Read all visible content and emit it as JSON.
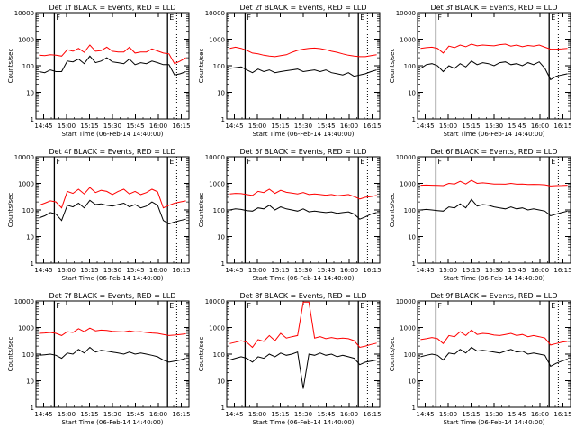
{
  "colors": {
    "events": "#000000",
    "lld": "#ff0000",
    "axis": "#000000",
    "background": "#ffffff"
  },
  "shared": {
    "xlabel": "Start Time (06-Feb-14 14:40:00)",
    "ylabel": "Counts/sec",
    "x_tick_labels": [
      "14:45",
      "15:00",
      "15:15",
      "15:30",
      "15:45",
      "16:00",
      "16:15"
    ],
    "y_tick_labels": [
      "1",
      "10",
      "100",
      "1000",
      "10000"
    ],
    "y_scale": "log",
    "ylim": [
      1,
      10000
    ],
    "solid_marker_times": [
      "14:52",
      "16:06"
    ],
    "dotted_marker_times": [
      "16:12"
    ],
    "marker_flags": [
      "F",
      "E"
    ]
  },
  "chart_data": [
    {
      "type": "line",
      "title": "Det 1f BLACK = Events, RED = LLD",
      "detector": "1f",
      "events": [
        60,
        55,
        70,
        60,
        60,
        150,
        140,
        180,
        120,
        230,
        130,
        150,
        200,
        140,
        130,
        120,
        180,
        110,
        130,
        120,
        150,
        130,
        110,
        110,
        45,
        50,
        60
      ],
      "lld": [
        250,
        240,
        260,
        250,
        230,
        400,
        350,
        450,
        320,
        600,
        350,
        370,
        500,
        350,
        330,
        330,
        500,
        300,
        330,
        330,
        430,
        360,
        300,
        280,
        120,
        150,
        200
      ]
    },
    {
      "type": "line",
      "title": "Det 2f BLACK = Events, RED = LLD",
      "detector": "2f",
      "events": [
        80,
        85,
        90,
        70,
        55,
        75,
        60,
        70,
        55,
        60,
        65,
        70,
        75,
        60,
        65,
        70,
        60,
        70,
        55,
        50,
        45,
        55,
        40,
        45,
        50,
        60,
        70
      ],
      "lld": [
        450,
        500,
        450,
        380,
        300,
        280,
        250,
        230,
        220,
        240,
        260,
        320,
        380,
        420,
        450,
        460,
        440,
        400,
        350,
        320,
        280,
        250,
        230,
        220,
        220,
        240,
        260
      ]
    },
    {
      "type": "line",
      "title": "Det 3f BLACK = Events, RED = LLD",
      "detector": "3f",
      "events": [
        80,
        110,
        120,
        100,
        60,
        100,
        80,
        120,
        90,
        150,
        110,
        130,
        120,
        100,
        130,
        140,
        110,
        120,
        100,
        130,
        110,
        140,
        80,
        30,
        40,
        45,
        50
      ],
      "lld": [
        450,
        480,
        500,
        450,
        300,
        550,
        480,
        600,
        520,
        650,
        560,
        600,
        580,
        560,
        620,
        650,
        550,
        600,
        520,
        580,
        550,
        600,
        500,
        420,
        420,
        430,
        450
      ]
    },
    {
      "type": "line",
      "title": "Det 4f BLACK = Events, RED = LLD",
      "detector": "4f",
      "events": [
        50,
        60,
        80,
        70,
        40,
        150,
        130,
        180,
        120,
        230,
        160,
        170,
        150,
        140,
        160,
        180,
        130,
        160,
        120,
        140,
        200,
        150,
        40,
        30,
        35,
        40,
        45
      ],
      "lld": [
        150,
        180,
        220,
        200,
        120,
        500,
        420,
        600,
        400,
        700,
        450,
        550,
        500,
        380,
        500,
        600,
        400,
        500,
        380,
        450,
        600,
        480,
        120,
        150,
        180,
        200,
        220
      ]
    },
    {
      "type": "line",
      "title": "Det 5f BLACK = Events, RED = LLD",
      "detector": "5f",
      "events": [
        100,
        110,
        105,
        95,
        90,
        120,
        110,
        150,
        100,
        130,
        110,
        100,
        90,
        110,
        85,
        90,
        85,
        80,
        85,
        75,
        80,
        85,
        70,
        45,
        55,
        70,
        80
      ],
      "lld": [
        400,
        420,
        410,
        380,
        350,
        500,
        450,
        600,
        420,
        550,
        460,
        430,
        400,
        450,
        380,
        400,
        380,
        360,
        380,
        340,
        360,
        380,
        320,
        260,
        300,
        320,
        350
      ]
    },
    {
      "type": "line",
      "title": "Det 6f BLACK = Events, RED = LLD",
      "detector": "6f",
      "events": [
        100,
        105,
        100,
        95,
        90,
        130,
        120,
        170,
        120,
        250,
        140,
        160,
        150,
        130,
        120,
        110,
        130,
        110,
        120,
        100,
        110,
        100,
        90,
        60,
        70,
        80,
        90
      ],
      "lld": [
        850,
        860,
        850,
        840,
        820,
        1000,
        950,
        1200,
        950,
        1300,
        1000,
        1050,
        1000,
        950,
        950,
        930,
        1000,
        930,
        950,
        900,
        920,
        900,
        880,
        800,
        820,
        830,
        850
      ]
    },
    {
      "type": "line",
      "title": "Det 7f BLACK = Events, RED = LLD",
      "detector": "7f",
      "events": [
        90,
        95,
        100,
        90,
        70,
        110,
        100,
        150,
        110,
        180,
        120,
        140,
        130,
        120,
        110,
        100,
        120,
        100,
        110,
        100,
        90,
        80,
        60,
        50,
        55,
        60,
        70
      ],
      "lld": [
        600,
        620,
        650,
        600,
        500,
        700,
        650,
        900,
        700,
        950,
        750,
        800,
        780,
        720,
        700,
        680,
        750,
        680,
        700,
        650,
        620,
        600,
        550,
        500,
        520,
        550,
        580
      ]
    },
    {
      "type": "line",
      "title": "Det 8f BLACK = Events, RED = LLD",
      "detector": "8f",
      "events": [
        60,
        70,
        80,
        70,
        50,
        80,
        70,
        100,
        80,
        110,
        90,
        100,
        120,
        5,
        100,
        90,
        110,
        90,
        100,
        80,
        90,
        80,
        70,
        40,
        50,
        55,
        60
      ],
      "lld": [
        250,
        280,
        320,
        280,
        180,
        350,
        300,
        500,
        320,
        600,
        400,
        450,
        500,
        9000,
        9000,
        400,
        450,
        380,
        420,
        380,
        400,
        380,
        320,
        180,
        200,
        230,
        260
      ]
    },
    {
      "type": "line",
      "title": "Det 9f BLACK = Events, RED = LLD",
      "detector": "9f",
      "events": [
        80,
        90,
        100,
        90,
        60,
        110,
        100,
        150,
        110,
        180,
        130,
        140,
        130,
        120,
        110,
        130,
        150,
        120,
        130,
        100,
        110,
        100,
        90,
        35,
        45,
        55,
        65
      ],
      "lld": [
        350,
        380,
        420,
        380,
        250,
        500,
        450,
        700,
        500,
        800,
        550,
        600,
        580,
        520,
        500,
        550,
        600,
        500,
        550,
        450,
        500,
        450,
        400,
        220,
        250,
        280,
        300
      ]
    }
  ]
}
